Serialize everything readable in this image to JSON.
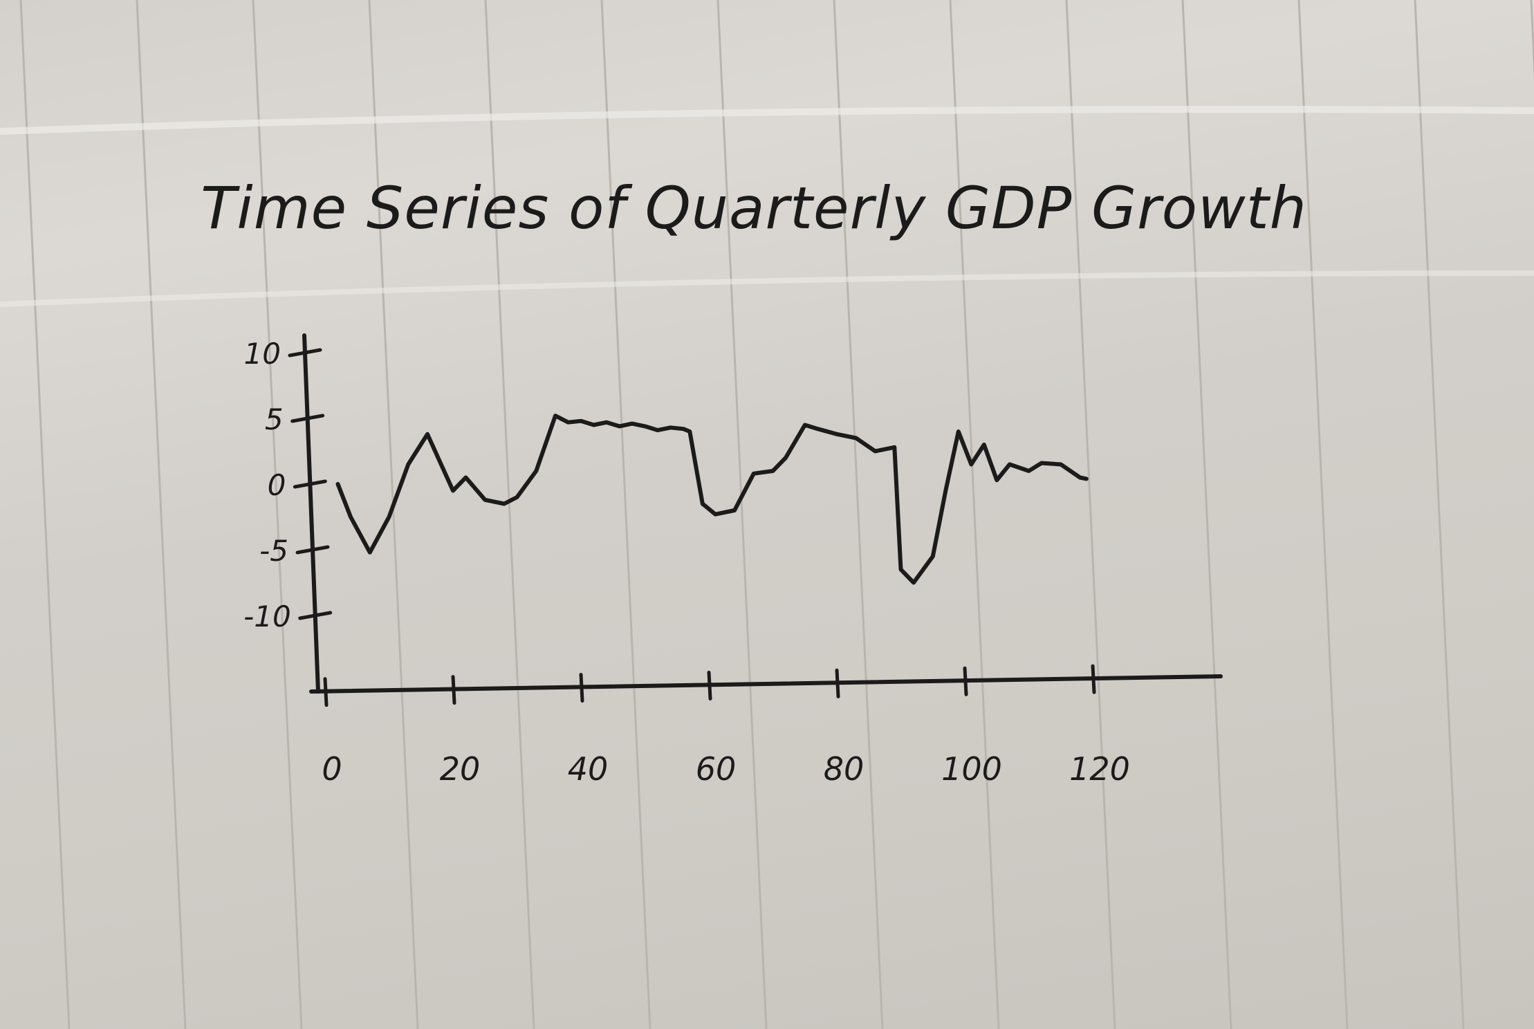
{
  "chart_data": {
    "type": "line",
    "title": "Time Series of Quarterly GDP Growth",
    "xlabel": "",
    "ylabel": "",
    "xlim": [
      0,
      125
    ],
    "ylim": [
      -10,
      10
    ],
    "x_ticks": [
      0,
      20,
      40,
      60,
      80,
      100,
      120
    ],
    "y_ticks": [
      10,
      5,
      0,
      -5,
      -10
    ],
    "y_tick_labels": [
      "10",
      "5",
      "0",
      "-5",
      "-10"
    ],
    "x_tick_labels": [
      "0",
      "20",
      "40",
      "60",
      "80",
      "100",
      "120"
    ],
    "grid": false,
    "legend": "none",
    "line_color": "#1b1b1b",
    "series": [
      {
        "x": [
          2,
          4,
          7,
          10,
          13,
          16,
          20,
          22,
          25,
          28,
          30,
          33,
          36,
          38,
          40,
          42,
          44,
          46,
          48,
          50,
          52,
          54,
          56,
          57,
          59,
          61,
          64,
          67,
          70,
          72,
          75,
          77,
          80,
          83,
          86,
          89,
          90,
          92,
          95,
          97,
          99,
          101,
          103,
          105,
          107,
          110,
          112,
          115,
          118,
          119
        ],
        "values": [
          0,
          -2.5,
          -5.2,
          -2.5,
          1.5,
          3.8,
          -0.5,
          0.5,
          -1.2,
          -1.5,
          -1,
          1,
          5.2,
          4.7,
          4.8,
          4.5,
          4.7,
          4.4,
          4.6,
          4.4,
          4.1,
          4.3,
          4.2,
          4.0,
          -1.5,
          -2.3,
          -2.0,
          0.8,
          1.0,
          2.0,
          4.5,
          4.2,
          3.8,
          3.5,
          2.5,
          2.8,
          -6.5,
          -7.5,
          -5.5,
          -0.5,
          4.0,
          1.5,
          3.0,
          0.3,
          1.5,
          1.0,
          1.6,
          1.5,
          0.5,
          0.4
        ]
      }
    ]
  }
}
